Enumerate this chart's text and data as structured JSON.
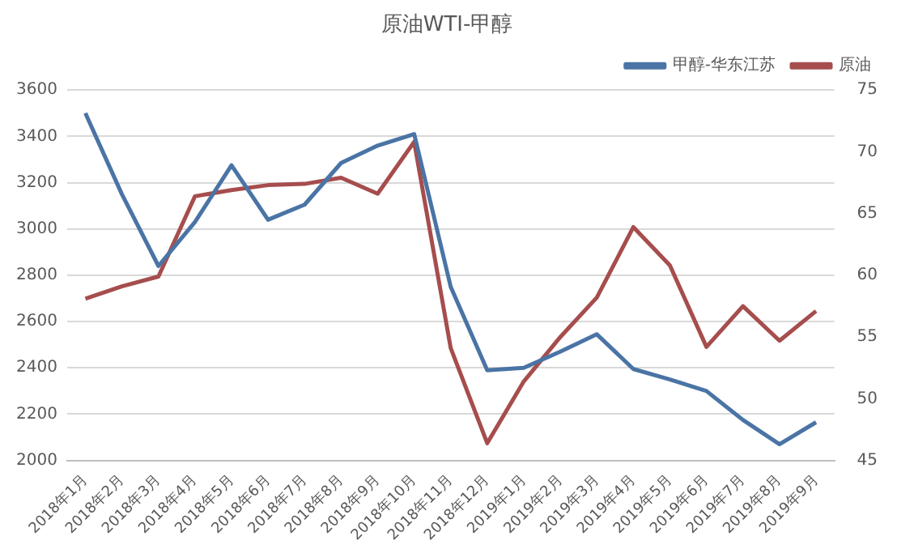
{
  "chart_data": {
    "type": "line",
    "title": "原油WTI-甲醇",
    "categories": [
      "2018年1月",
      "2018年2月",
      "2018年3月",
      "2018年4月",
      "2018年5月",
      "2018年6月",
      "2018年7月",
      "2018年8月",
      "2018年9月",
      "2018年10月",
      "2018年11月",
      "2018年12月",
      "2019年1月",
      "2019年2月",
      "2019年3月",
      "2019年4月",
      "2019年5月",
      "2019年6月",
      "2019年7月",
      "2019年8月",
      "2019年9月"
    ],
    "series": [
      {
        "name": "甲醇-华东江苏",
        "color": "#4a74a5",
        "values": [
          3500,
          3150,
          2840,
          3030,
          3275,
          3040,
          3105,
          3285,
          3360,
          3410,
          2750,
          2390,
          2400,
          2470,
          2545,
          2395,
          2350,
          2300,
          2175,
          2070,
          2165
        ]
      },
      {
        "name": "原油",
        "color": "#a64d4d",
        "axis": "y2",
        "values": [
          58.1,
          59.1,
          59.9,
          66.4,
          66.9,
          67.3,
          67.4,
          67.9,
          66.6,
          70.8,
          54.1,
          46.4,
          51.4,
          55.0,
          58.2,
          63.9,
          60.8,
          54.2,
          57.5,
          54.7,
          57.1
        ]
      }
    ],
    "ylim": [
      2000,
      3600
    ],
    "yticks": [
      2000,
      2200,
      2400,
      2600,
      2800,
      3000,
      3200,
      3400,
      3600
    ],
    "y2lim": [
      45,
      75
    ],
    "y2ticks": [
      45,
      50,
      55,
      60,
      65,
      70,
      75
    ],
    "grid": "y",
    "legend": "top right",
    "marker": "none",
    "line_style": "solid"
  }
}
